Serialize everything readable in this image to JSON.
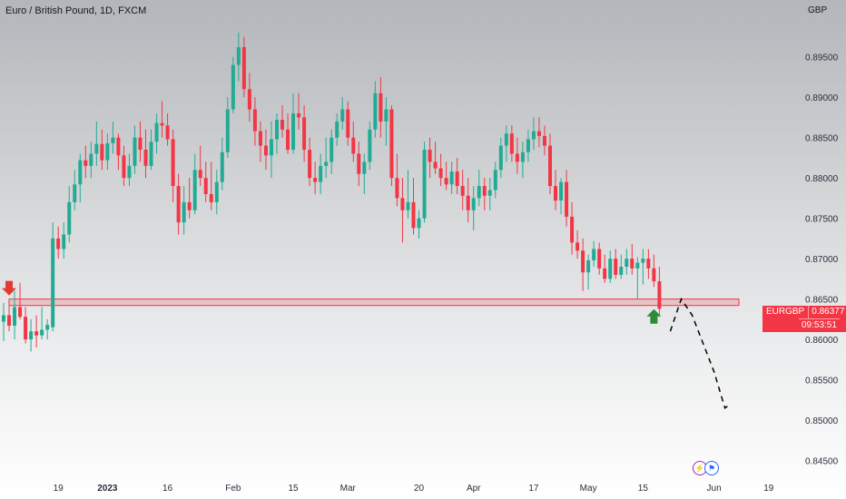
{
  "header": {
    "title": "Euro / British Pound, 1D, FXCM",
    "currency": "GBP"
  },
  "price_tag": {
    "symbol": "EURGBP",
    "price": "0.86377",
    "countdown": "09:53:51"
  },
  "events": {
    "icon1": "lightning-icon",
    "icon2": "flag-icon"
  },
  "colors": {
    "up": "#22ab94",
    "down": "#f23645",
    "zone_fill": "#f2364533",
    "zone_stroke": "#f23645",
    "arrow_down": "#e53935",
    "arrow_up": "#2e8b3a",
    "projection": "#000000"
  },
  "chart_data": {
    "type": "candlestick",
    "y_ticks": [
      "0.89500",
      "0.89000",
      "0.88500",
      "0.88000",
      "0.87500",
      "0.87000",
      "0.86500",
      "0.86000",
      "0.85500",
      "0.85000",
      "0.84500"
    ],
    "y_range": [
      0.8436,
      0.8998
    ],
    "x_ticks": [
      {
        "label": "19",
        "idx": 10,
        "bold": false
      },
      {
        "label": "2023",
        "idx": 19,
        "bold": true
      },
      {
        "label": "16",
        "idx": 30,
        "bold": false
      },
      {
        "label": "Feb",
        "idx": 42,
        "bold": false
      },
      {
        "label": "15",
        "idx": 53,
        "bold": false
      },
      {
        "label": "Mar",
        "idx": 63,
        "bold": false
      },
      {
        "label": "20",
        "idx": 76,
        "bold": false
      },
      {
        "label": "Apr",
        "idx": 86,
        "bold": false
      },
      {
        "label": "17",
        "idx": 97,
        "bold": false
      },
      {
        "label": "May",
        "idx": 107,
        "bold": false
      },
      {
        "label": "15",
        "idx": 117,
        "bold": false
      },
      {
        "label": "Jun",
        "idx": 130,
        "bold": false
      },
      {
        "label": "19",
        "idx": 140,
        "bold": false
      }
    ],
    "candles": [
      [
        0.8622,
        0.8645,
        0.8598,
        0.863
      ],
      [
        0.863,
        0.865,
        0.861,
        0.8617
      ],
      [
        0.8617,
        0.866,
        0.86,
        0.864
      ],
      [
        0.864,
        0.867,
        0.8625,
        0.8628
      ],
      [
        0.8628,
        0.864,
        0.8595,
        0.86
      ],
      [
        0.86,
        0.8625,
        0.8585,
        0.861
      ],
      [
        0.861,
        0.863,
        0.859,
        0.8605
      ],
      [
        0.8605,
        0.864,
        0.86,
        0.8612
      ],
      [
        0.8612,
        0.8625,
        0.86,
        0.8618
      ],
      [
        0.8615,
        0.8745,
        0.861,
        0.8725
      ],
      [
        0.8725,
        0.874,
        0.87,
        0.8712
      ],
      [
        0.8712,
        0.8745,
        0.87,
        0.873
      ],
      [
        0.873,
        0.879,
        0.872,
        0.877
      ],
      [
        0.877,
        0.881,
        0.876,
        0.8792
      ],
      [
        0.8792,
        0.883,
        0.877,
        0.8822
      ],
      [
        0.8822,
        0.884,
        0.88,
        0.8815
      ],
      [
        0.8815,
        0.8845,
        0.88,
        0.883
      ],
      [
        0.883,
        0.887,
        0.8815,
        0.8842
      ],
      [
        0.8842,
        0.886,
        0.881,
        0.8822
      ],
      [
        0.8822,
        0.8855,
        0.881,
        0.8843
      ],
      [
        0.8843,
        0.887,
        0.883,
        0.885
      ],
      [
        0.885,
        0.8855,
        0.881,
        0.8828
      ],
      [
        0.8828,
        0.884,
        0.879,
        0.88
      ],
      [
        0.88,
        0.883,
        0.879,
        0.8815
      ],
      [
        0.8815,
        0.8865,
        0.8805,
        0.885
      ],
      [
        0.885,
        0.887,
        0.882,
        0.8835
      ],
      [
        0.8835,
        0.886,
        0.88,
        0.8815
      ],
      [
        0.8815,
        0.886,
        0.881,
        0.8845
      ],
      [
        0.8845,
        0.888,
        0.883,
        0.8868
      ],
      [
        0.8868,
        0.8895,
        0.885,
        0.8865
      ],
      [
        0.8865,
        0.888,
        0.884,
        0.8848
      ],
      [
        0.8848,
        0.886,
        0.877,
        0.879
      ],
      [
        0.879,
        0.8805,
        0.873,
        0.8745
      ],
      [
        0.8745,
        0.879,
        0.873,
        0.877
      ],
      [
        0.877,
        0.88,
        0.875,
        0.876
      ],
      [
        0.876,
        0.883,
        0.8755,
        0.881
      ],
      [
        0.881,
        0.884,
        0.879,
        0.88
      ],
      [
        0.88,
        0.882,
        0.877,
        0.878
      ],
      [
        0.878,
        0.882,
        0.876,
        0.877
      ],
      [
        0.877,
        0.881,
        0.8755,
        0.8795
      ],
      [
        0.8795,
        0.885,
        0.8785,
        0.8832
      ],
      [
        0.8832,
        0.89,
        0.8825,
        0.8885
      ],
      [
        0.8885,
        0.895,
        0.888,
        0.894
      ],
      [
        0.894,
        0.898,
        0.892,
        0.8962
      ],
      [
        0.8962,
        0.8975,
        0.89,
        0.891
      ],
      [
        0.891,
        0.893,
        0.887,
        0.8885
      ],
      [
        0.8885,
        0.89,
        0.884,
        0.8858
      ],
      [
        0.8858,
        0.887,
        0.882,
        0.884
      ],
      [
        0.884,
        0.886,
        0.881,
        0.8828
      ],
      [
        0.8828,
        0.887,
        0.88,
        0.8848
      ],
      [
        0.8848,
        0.888,
        0.883,
        0.8872
      ],
      [
        0.8872,
        0.889,
        0.885,
        0.886
      ],
      [
        0.886,
        0.888,
        0.883,
        0.8835
      ],
      [
        0.8835,
        0.8905,
        0.883,
        0.888
      ],
      [
        0.888,
        0.8905,
        0.886,
        0.8875
      ],
      [
        0.8875,
        0.889,
        0.882,
        0.8835
      ],
      [
        0.8835,
        0.885,
        0.879,
        0.88
      ],
      [
        0.88,
        0.882,
        0.878,
        0.8795
      ],
      [
        0.8795,
        0.883,
        0.878,
        0.8815
      ],
      [
        0.8815,
        0.885,
        0.88,
        0.882
      ],
      [
        0.882,
        0.886,
        0.8805,
        0.885
      ],
      [
        0.885,
        0.888,
        0.884,
        0.887
      ],
      [
        0.887,
        0.89,
        0.886,
        0.8885
      ],
      [
        0.8885,
        0.8895,
        0.884,
        0.885
      ],
      [
        0.885,
        0.887,
        0.882,
        0.883
      ],
      [
        0.883,
        0.8845,
        0.879,
        0.8805
      ],
      [
        0.8805,
        0.883,
        0.878,
        0.882
      ],
      [
        0.882,
        0.887,
        0.881,
        0.886
      ],
      [
        0.886,
        0.892,
        0.885,
        0.8905
      ],
      [
        0.8905,
        0.8925,
        0.885,
        0.887
      ],
      [
        0.887,
        0.89,
        0.884,
        0.8885
      ],
      [
        0.8885,
        0.889,
        0.879,
        0.88
      ],
      [
        0.88,
        0.883,
        0.8765,
        0.8775
      ],
      [
        0.8775,
        0.88,
        0.872,
        0.876
      ],
      [
        0.876,
        0.881,
        0.875,
        0.877
      ],
      [
        0.877,
        0.88,
        0.873,
        0.8738
      ],
      [
        0.8738,
        0.876,
        0.8725,
        0.875
      ],
      [
        0.875,
        0.8845,
        0.8745,
        0.8835
      ],
      [
        0.8835,
        0.885,
        0.88,
        0.882
      ],
      [
        0.882,
        0.8845,
        0.8805,
        0.8812
      ],
      [
        0.8812,
        0.883,
        0.879,
        0.88
      ],
      [
        0.88,
        0.882,
        0.8785,
        0.8792
      ],
      [
        0.8792,
        0.882,
        0.878,
        0.8808
      ],
      [
        0.8808,
        0.8825,
        0.878,
        0.879
      ],
      [
        0.879,
        0.881,
        0.876,
        0.8778
      ],
      [
        0.8778,
        0.88,
        0.8745,
        0.876
      ],
      [
        0.876,
        0.879,
        0.8735,
        0.8775
      ],
      [
        0.8775,
        0.881,
        0.8765,
        0.879
      ],
      [
        0.879,
        0.88,
        0.876,
        0.8778
      ],
      [
        0.8778,
        0.88,
        0.876,
        0.8785
      ],
      [
        0.8785,
        0.882,
        0.8775,
        0.881
      ],
      [
        0.881,
        0.885,
        0.88,
        0.884
      ],
      [
        0.884,
        0.8865,
        0.882,
        0.8855
      ],
      [
        0.8855,
        0.8865,
        0.882,
        0.883
      ],
      [
        0.883,
        0.885,
        0.8805,
        0.882
      ],
      [
        0.882,
        0.8845,
        0.88,
        0.8832
      ],
      [
        0.8832,
        0.886,
        0.882,
        0.8848
      ],
      [
        0.8848,
        0.8875,
        0.8835,
        0.8858
      ],
      [
        0.8858,
        0.8875,
        0.8838,
        0.8852
      ],
      [
        0.8852,
        0.8865,
        0.8828,
        0.884
      ],
      [
        0.884,
        0.8855,
        0.878,
        0.879
      ],
      [
        0.879,
        0.881,
        0.876,
        0.8772
      ],
      [
        0.8772,
        0.88,
        0.8755,
        0.8795
      ],
      [
        0.8795,
        0.881,
        0.874,
        0.8752
      ],
      [
        0.8752,
        0.877,
        0.8705,
        0.872
      ],
      [
        0.872,
        0.8735,
        0.87,
        0.871
      ],
      [
        0.871,
        0.8725,
        0.866,
        0.8683
      ],
      [
        0.8683,
        0.8705,
        0.8662,
        0.8698
      ],
      [
        0.8698,
        0.8722,
        0.869,
        0.8712
      ],
      [
        0.8712,
        0.872,
        0.868,
        0.8688
      ],
      [
        0.8688,
        0.8705,
        0.867,
        0.8675
      ],
      [
        0.8675,
        0.871,
        0.867,
        0.87
      ],
      [
        0.87,
        0.8712,
        0.8675,
        0.868
      ],
      [
        0.868,
        0.8705,
        0.8675,
        0.869
      ],
      [
        0.869,
        0.8712,
        0.868,
        0.87
      ],
      [
        0.87,
        0.8718,
        0.868,
        0.8688
      ],
      [
        0.8688,
        0.8702,
        0.865,
        0.8695
      ],
      [
        0.8695,
        0.8712,
        0.8668,
        0.87
      ],
      [
        0.87,
        0.8712,
        0.8675,
        0.8688
      ],
      [
        0.8688,
        0.8705,
        0.8665,
        0.8672
      ],
      [
        0.8672,
        0.869,
        0.863,
        0.8638
      ]
    ],
    "horizontal_zone": [
      0.8642,
      0.865
    ],
    "projection_path": [
      [
        122,
        0.861
      ],
      [
        124,
        0.865
      ],
      [
        126,
        0.863
      ],
      [
        130,
        0.856
      ],
      [
        132,
        0.8515
      ],
      [
        133,
        0.852
      ]
    ],
    "down_arrow_idx": 1,
    "up_arrow_idx": 119
  }
}
